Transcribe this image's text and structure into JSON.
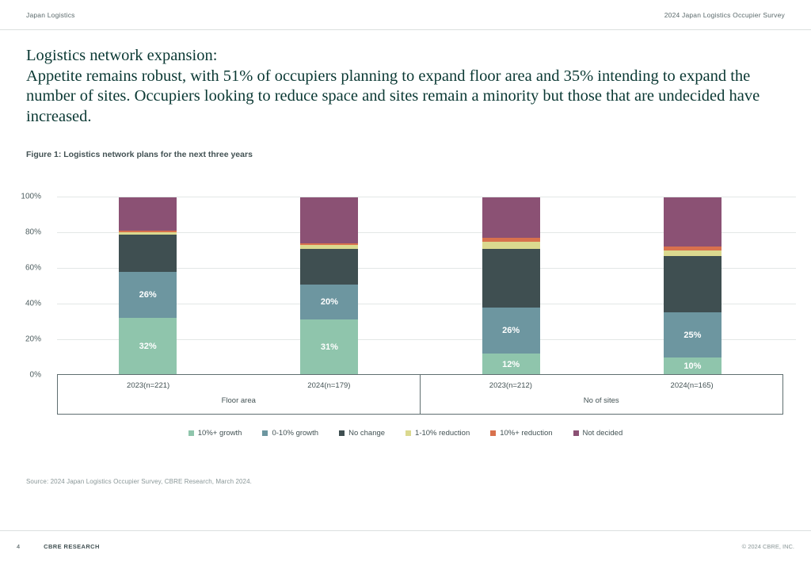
{
  "header": {
    "left": "Japan Logistics",
    "right": "2024 Japan Logistics Occupier Survey"
  },
  "title": {
    "line1": "Logistics network expansion:",
    "body": "Appetite remains robust, with 51% of occupiers planning to expand floor area and 35% intending to expand the number of sites. Occupiers looking to reduce space and sites remain a minority but those that are undecided have increased."
  },
  "figure": {
    "caption": "Figure 1: Logistics network plans for the next three years"
  },
  "chart_data": {
    "type": "bar",
    "stacked": true,
    "unit": "%",
    "title": "Logistics network plans for the next three years",
    "categories": [
      "2023(n=221)",
      "2024(n=179)",
      "2023(n=212)",
      "2024(n=165)"
    ],
    "groups": [
      {
        "label": "Floor area",
        "category_indices": [
          0,
          1
        ]
      },
      {
        "label": "No of sites",
        "category_indices": [
          2,
          3
        ]
      }
    ],
    "series": [
      {
        "name": "10%+ growth",
        "color": "#8fc5ac",
        "values": [
          32,
          31,
          12,
          10
        ],
        "show_labels": true
      },
      {
        "name": "0-10% growth",
        "color": "#6d96a0",
        "values": [
          26,
          20,
          26,
          25
        ],
        "show_labels": true
      },
      {
        "name": "No change",
        "color": "#3f4f51",
        "values": [
          21,
          20,
          33,
          32
        ],
        "show_labels": false
      },
      {
        "name": "1-10% reduction",
        "color": "#dbd98f",
        "values": [
          1,
          2,
          4,
          3
        ],
        "show_labels": false
      },
      {
        "name": "10%+ reduction",
        "color": "#d8714d",
        "values": [
          1,
          1,
          2,
          2
        ],
        "show_labels": false
      },
      {
        "name": "Not decided",
        "color": "#8b5174",
        "values": [
          19,
          26,
          23,
          28
        ],
        "show_labels": false
      }
    ],
    "y_axis": {
      "min": 0,
      "max": 100,
      "tick_step": 20,
      "tick_labels": [
        "0%",
        "20%",
        "40%",
        "60%",
        "80%",
        "100%"
      ],
      "grid": true
    },
    "legend_position": "bottom"
  },
  "source": "Source: 2024 Japan Logistics Occupier Survey, CBRE Research, March 2024.",
  "footer": {
    "page": "4",
    "left": "CBRE RESEARCH",
    "right": "© 2024 CBRE, INC."
  },
  "colors": {
    "title_green": "#0a3833",
    "text_slate": "#435254",
    "muted_gray": "#8a9798",
    "gridline": "#e3e7e6",
    "axis_border": "#5f6e70"
  }
}
